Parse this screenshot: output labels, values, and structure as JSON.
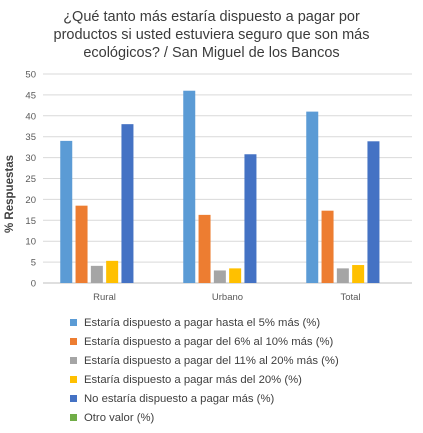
{
  "chart_data": {
    "type": "bar",
    "title_lines": [
      "¿Qué tanto más estaría dispuesto a pagar por",
      "productos si usted estuviera seguro que son más",
      "ecológicos? / San Miguel de los Bancos"
    ],
    "xlabel": "",
    "ylabel": "% Respuestas",
    "ylim": [
      0,
      50
    ],
    "yticks": [
      "0",
      "5",
      "10",
      "15",
      "20",
      "25",
      "30",
      "35",
      "40",
      "45",
      "50"
    ],
    "grid": true,
    "legend_position": "bottom",
    "categories": [
      "Rural",
      "Urbano",
      "Total"
    ],
    "series": [
      {
        "name": "Estaría dispuesto a pagar hasta el 5% más (%)",
        "color": "#5b9bd5",
        "values": [
          34,
          46,
          41
        ]
      },
      {
        "name": "Estaría dispuesto a pagar del 6% al 10% más (%)",
        "color": "#ed7d31",
        "values": [
          18.5,
          16.3,
          17.3
        ]
      },
      {
        "name": "Estaría dispuesto a pagar del 11% al 20% más (%)",
        "color": "#a5a5a5",
        "values": [
          4.1,
          3.0,
          3.5
        ]
      },
      {
        "name": "Estaría dispuesto a pagar más del 20% (%)",
        "color": "#ffc000",
        "values": [
          5.3,
          3.5,
          4.3
        ]
      },
      {
        "name": "No estaría dispuesto a pagar más (%)",
        "color": "#4472c4",
        "values": [
          38,
          30.8,
          33.9
        ]
      },
      {
        "name": "Otro valor (%)",
        "color": "#70ad47",
        "values": [
          0,
          0,
          0
        ]
      }
    ]
  }
}
